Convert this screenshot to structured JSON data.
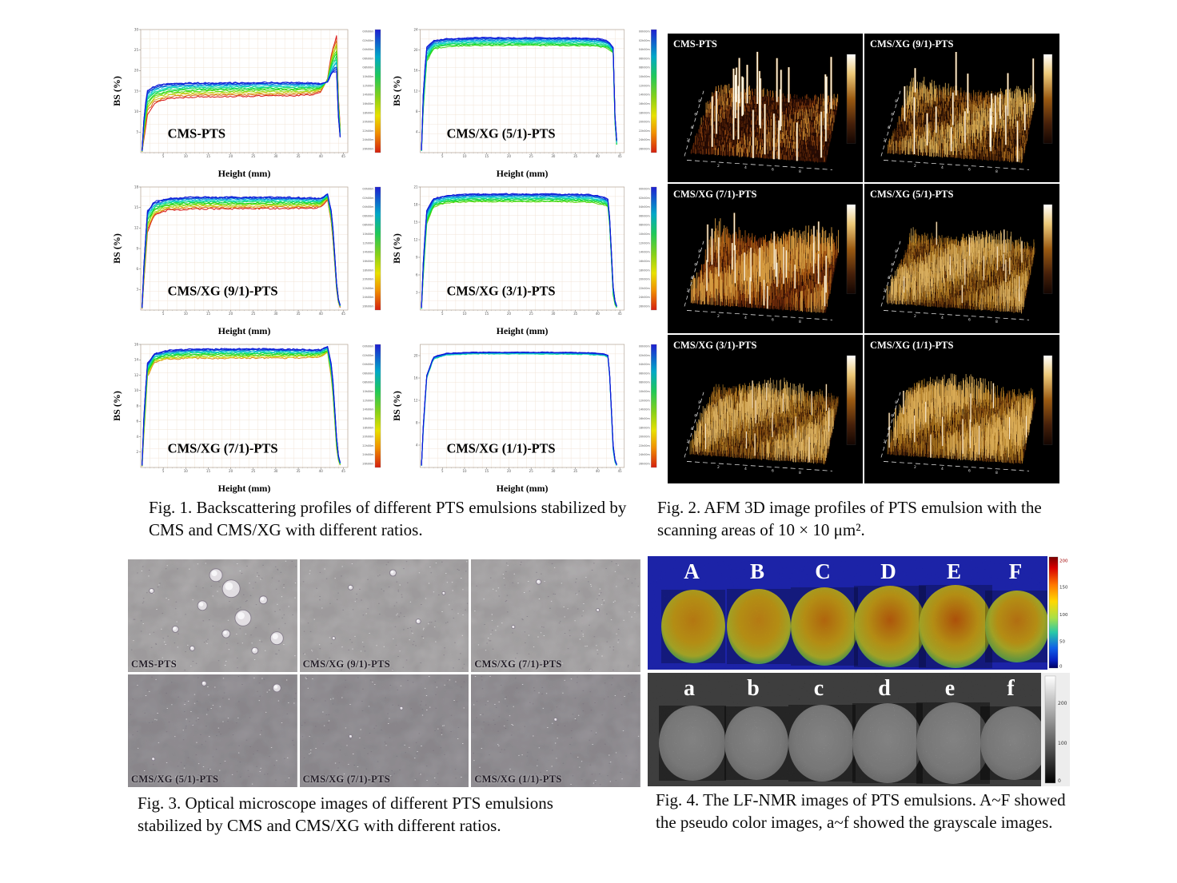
{
  "fig1": {
    "caption": "Fig. 1. Backscattering profiles of different PTS emulsions stabilized by CMS and CMS/XG with different ratios.",
    "xlabel": "Height (mm)",
    "ylabel": "BS (%)",
    "legend_times": [
      "00h00m",
      "02h00m",
      "04h00m",
      "06h00m",
      "08h00m",
      "10h00m",
      "12h00m",
      "14h00m",
      "16h00m",
      "18h00m",
      "20h00m",
      "22h00m",
      "24h00m",
      "26h00m"
    ]
  },
  "chart_data": [
    {
      "type": "line",
      "label": "CMS-PTS",
      "xlabel": "Height (mm)",
      "ylabel": "BS (%)",
      "xlim": [
        0,
        46
      ],
      "ylim": [
        0,
        30
      ],
      "y_ticks": [
        5,
        10,
        15,
        20,
        25,
        30
      ],
      "x_ticks": [
        5,
        10,
        15,
        20,
        25,
        30,
        35,
        40,
        45
      ],
      "n_scans": 14,
      "color_span": [
        0,
        1
      ],
      "x": [
        0.3,
        0.8,
        1.5,
        3,
        6,
        12,
        20,
        28,
        34,
        38,
        40,
        41.5,
        42.5,
        43.5,
        44,
        44.6
      ],
      "first_scan": [
        0.5,
        10,
        15,
        16.2,
        16.8,
        17,
        17,
        17.1,
        17.1,
        17,
        16.8,
        17.2,
        19.5,
        20,
        6,
        1.5
      ],
      "last_scan": [
        0.2,
        4,
        9.5,
        12,
        13.2,
        13.6,
        13.7,
        13.8,
        13.9,
        14.1,
        14.8,
        18,
        25,
        28.5,
        10,
        2.5
      ]
    },
    {
      "type": "line",
      "label": "CMS/XG (5/1)-PTS",
      "xlabel": "Height (mm)",
      "ylabel": "BS (%)",
      "xlim": [
        0,
        46
      ],
      "ylim": [
        0,
        24
      ],
      "y_ticks": [
        4,
        8,
        12,
        16,
        20,
        24
      ],
      "x_ticks": [
        5,
        10,
        15,
        20,
        25,
        30,
        35,
        40,
        45
      ],
      "n_scans": 12,
      "color_span": [
        0,
        0.55
      ],
      "x": [
        0.3,
        0.8,
        1.5,
        3,
        6,
        12,
        20,
        28,
        34,
        38,
        40,
        41.5,
        42.5,
        43.5,
        44,
        44.6
      ],
      "first_scan": [
        0.5,
        14,
        20.5,
        21.8,
        22.2,
        22.4,
        22.4,
        22.4,
        22.35,
        22.3,
        22.2,
        22,
        21.6,
        20.5,
        4,
        0.8
      ],
      "last_scan": [
        0.3,
        10,
        17.8,
        20.2,
        20.7,
        20.9,
        20.9,
        20.9,
        20.85,
        20.8,
        20.7,
        20.5,
        20.2,
        19.5,
        2.5,
        0.5
      ]
    },
    {
      "type": "line",
      "label": "CMS/XG (9/1)-PTS",
      "xlabel": "Height (mm)",
      "ylabel": "BS (%)",
      "xlim": [
        0,
        46
      ],
      "ylim": [
        0,
        18
      ],
      "y_ticks": [
        3,
        6,
        9,
        12,
        15,
        18
      ],
      "x_ticks": [
        5,
        10,
        15,
        20,
        25,
        30,
        35,
        40,
        45
      ],
      "n_scans": 14,
      "color_span": [
        0,
        1
      ],
      "x": [
        0.3,
        0.8,
        1.5,
        3,
        6,
        12,
        20,
        28,
        34,
        38,
        40,
        41.5,
        42.5,
        43.5,
        44,
        44.6
      ],
      "first_scan": [
        0.4,
        8,
        14.5,
        15.8,
        16.3,
        16.5,
        16.5,
        16.5,
        16.45,
        16.4,
        16.3,
        17.0,
        14,
        4,
        1,
        0.4
      ],
      "last_scan": [
        0.2,
        5,
        11.5,
        13.8,
        14.6,
        14.8,
        14.8,
        14.85,
        14.85,
        14.9,
        15.0,
        16.2,
        12,
        3,
        0.6,
        0.2
      ]
    },
    {
      "type": "line",
      "label": "CMS/XG (3/1)-PTS",
      "xlabel": "Height (mm)",
      "ylabel": "BS (%)",
      "xlim": [
        0,
        46
      ],
      "ylim": [
        0,
        21
      ],
      "y_ticks": [
        3,
        6,
        9,
        12,
        15,
        18,
        21
      ],
      "x_ticks": [
        5,
        10,
        15,
        20,
        25,
        30,
        35,
        40,
        45
      ],
      "n_scans": 12,
      "color_span": [
        0,
        0.6
      ],
      "x": [
        0.3,
        0.8,
        1.5,
        3,
        6,
        12,
        20,
        28,
        34,
        38,
        40,
        41.5,
        42.5,
        43.5,
        44,
        44.6
      ],
      "first_scan": [
        0.4,
        10,
        17,
        19,
        19.6,
        19.8,
        19.8,
        19.8,
        19.75,
        19.7,
        19.5,
        19.2,
        18.8,
        4,
        1,
        0.4
      ],
      "last_scan": [
        0.2,
        7,
        14.8,
        17.6,
        18.3,
        18.5,
        18.5,
        18.5,
        18.45,
        18.4,
        18.2,
        17.9,
        17.5,
        2.5,
        0.6,
        0.2
      ]
    },
    {
      "type": "line",
      "label": "CMS/XG (7/1)-PTS",
      "xlabel": "Height (mm)",
      "ylabel": "BS (%)",
      "xlim": [
        0,
        46
      ],
      "ylim": [
        0,
        16
      ],
      "y_ticks": [
        2,
        4,
        6,
        8,
        10,
        12,
        14,
        16
      ],
      "x_ticks": [
        5,
        10,
        15,
        20,
        25,
        30,
        35,
        40,
        45
      ],
      "n_scans": 13,
      "color_span": [
        0,
        0.85
      ],
      "x": [
        0.3,
        0.8,
        1.5,
        3,
        6,
        12,
        20,
        28,
        34,
        38,
        40,
        41.5,
        42.5,
        43.5,
        44,
        44.6
      ],
      "first_scan": [
        0.3,
        8,
        13.5,
        14.8,
        15.2,
        15.4,
        15.4,
        15.4,
        15.35,
        15.3,
        15.3,
        15.7,
        13,
        4,
        1,
        0.3
      ],
      "last_scan": [
        0.2,
        5,
        11.8,
        13.7,
        14.1,
        14.2,
        14.2,
        14.25,
        14.25,
        14.3,
        14.4,
        15.0,
        11,
        2.5,
        0.5,
        0.2
      ]
    },
    {
      "type": "line",
      "label": "CMS/XG (1/1)-PTS",
      "xlabel": "Height (mm)",
      "ylabel": "BS (%)",
      "xlim": [
        0,
        46
      ],
      "ylim": [
        0,
        22
      ],
      "y_ticks": [
        4,
        8,
        12,
        16,
        20
      ],
      "x_ticks": [
        5,
        10,
        15,
        20,
        25,
        30,
        35,
        40,
        45
      ],
      "n_scans": 10,
      "color_span": [
        0,
        0.35
      ],
      "x": [
        0.3,
        0.8,
        1.5,
        3,
        6,
        12,
        20,
        28,
        34,
        38,
        40,
        41.5,
        42.5,
        43.5,
        44,
        44.6
      ],
      "first_scan": [
        0.4,
        9,
        16.5,
        19.8,
        20.4,
        20.6,
        20.6,
        20.6,
        20.55,
        20.5,
        20.4,
        20.3,
        20,
        4,
        0.8,
        0.3
      ],
      "last_scan": [
        0.3,
        8,
        16,
        19.4,
        20.1,
        20.3,
        20.3,
        20.3,
        20.25,
        20.2,
        20.1,
        20,
        19.7,
        3,
        0.5,
        0.2
      ]
    }
  ],
  "fig2": {
    "caption": "Fig. 2. AFM 3D image profiles of PTS emulsion with the scanning areas of 10 × 10 μm².",
    "panels": [
      {
        "label": "CMS-PTS",
        "style": "sparse-peaks"
      },
      {
        "label": "CMS/XG (9/1)-PTS",
        "style": "carpet-peaks"
      },
      {
        "label": "CMS/XG (7/1)-PTS",
        "style": "dense-red"
      },
      {
        "label": "CMS/XG (5/1)-PTS",
        "style": "fine-carpet"
      },
      {
        "label": "CMS/XG (3/1)-PTS",
        "style": "fine-carpet"
      },
      {
        "label": "CMS/XG (1/1)-PTS",
        "style": "fine-carpet-tall"
      }
    ]
  },
  "fig3": {
    "caption": "Fig. 3.  Optical microscope images of different PTS emulsions stabilized by CMS and CMS/XG with different ratios.",
    "panels": [
      {
        "label": "CMS-PTS",
        "tone": "light",
        "bubbles": [
          [
            52,
            14,
            8
          ],
          [
            61,
            26,
            11
          ],
          [
            44,
            41,
            6
          ],
          [
            68,
            52,
            10
          ],
          [
            80,
            36,
            5
          ],
          [
            28,
            62,
            4
          ],
          [
            88,
            70,
            8
          ],
          [
            38,
            79,
            3
          ],
          [
            75,
            81,
            4
          ],
          [
            14,
            28,
            3
          ],
          [
            58,
            66,
            5
          ]
        ]
      },
      {
        "label": "CMS/XG (9/1)-PTS",
        "tone": "light",
        "bubbles": [
          [
            30,
            25,
            3
          ],
          [
            55,
            12,
            4
          ],
          [
            70,
            55,
            3
          ],
          [
            20,
            70,
            2
          ],
          [
            85,
            30,
            2
          ]
        ]
      },
      {
        "label": "CMS/XG (7/1)-PTS",
        "tone": "light",
        "bubbles": [
          [
            40,
            20,
            3
          ],
          [
            75,
            45,
            2
          ],
          [
            25,
            60,
            2
          ]
        ]
      },
      {
        "label": "CMS/XG (5/1)-PTS",
        "tone": "dark",
        "bubbles": [
          [
            88,
            12,
            5
          ],
          [
            45,
            8,
            3
          ],
          [
            15,
            75,
            2
          ]
        ]
      },
      {
        "label": "CMS/XG (7/1)-PTS",
        "tone": "dark",
        "bubbles": [
          [
            60,
            30,
            2
          ],
          [
            30,
            55,
            2
          ]
        ]
      },
      {
        "label": "CMS/XG (1/1)-PTS",
        "tone": "dark",
        "bubbles": [
          [
            50,
            40,
            2
          ]
        ]
      }
    ]
  },
  "fig4": {
    "caption": "Fig. 4.  The LF-NMR images of PTS emulsions. A~F showed the pseudo color images, a~f showed the grayscale images.",
    "pseudo_labels": [
      "A",
      "B",
      "C",
      "D",
      "E",
      "F"
    ],
    "gray_labels": [
      "a",
      "b",
      "c",
      "d",
      "e",
      "f"
    ],
    "pseudo_colorbar_labels": [
      "200",
      "150",
      "100",
      "50",
      "0"
    ],
    "gray_colorbar_labels": [
      "200",
      "100",
      "0"
    ],
    "colors": {
      "background_blue": "#0a13c8",
      "blob_cores": [
        "#f0a018",
        "#f2a41a",
        "#ec8812",
        "#e87410",
        "#e66c0e",
        "#ee9418"
      ],
      "blob_mid": "#f0be1c",
      "blob_edge": "#30b8ae",
      "gray_bg": "#0e0e0e",
      "gray_blob": "#c9c9c9"
    }
  }
}
